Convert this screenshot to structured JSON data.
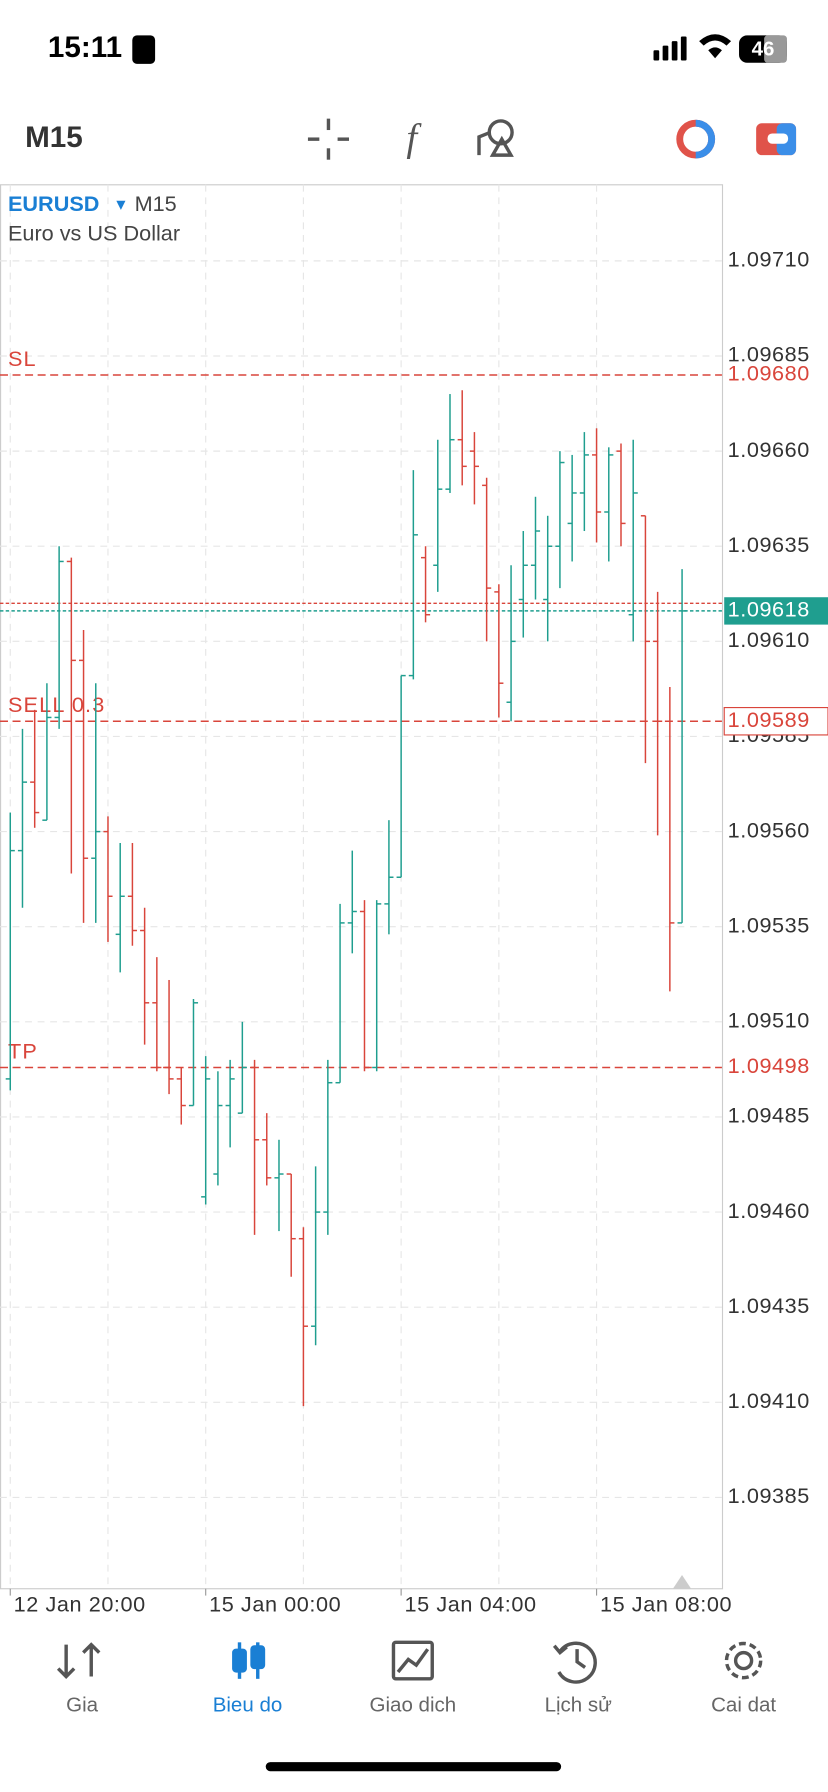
{
  "status_bar": {
    "time": "15:11",
    "battery": "46"
  },
  "toolbar": {
    "timeframe": "M15"
  },
  "chart_data": {
    "type": "ohlc",
    "symbol": "EURUSD",
    "timeframe": "M15",
    "title": "Euro vs US Dollar",
    "categories": [
      "12 Jan 20:00",
      null,
      null,
      null,
      null,
      null,
      null,
      null,
      null,
      null,
      null,
      null,
      null,
      null,
      null,
      null,
      "15 Jan 00:00",
      null,
      null,
      null,
      null,
      null,
      null,
      null,
      null,
      null,
      null,
      null,
      null,
      null,
      null,
      null,
      "15 Jan 04:00",
      null,
      null,
      null,
      null,
      null,
      null,
      null,
      null,
      null,
      null,
      null,
      null,
      null,
      null,
      null,
      "15 Jan 08:00",
      null,
      null,
      null,
      null,
      null,
      null,
      null
    ],
    "open": [
      1.09495,
      1.09555,
      1.09573,
      1.09563,
      1.0959,
      1.09631,
      1.09605,
      1.09553,
      1.0956,
      1.09533,
      1.09543,
      1.09534,
      1.09515,
      1.09498,
      1.09495,
      1.09488,
      1.09464,
      1.0947,
      1.09488,
      1.09486,
      1.09498,
      1.09479,
      1.09469,
      1.0947,
      1.09453,
      1.0943,
      1.0946,
      1.09494,
      1.09536,
      1.09539,
      1.09498,
      1.09541,
      1.09548,
      1.09601,
      1.09632,
      1.0963,
      1.0965,
      1.09663,
      1.0966,
      1.09651,
      1.09623,
      1.09594,
      1.09621,
      1.0963,
      1.09621,
      1.09635,
      1.09641,
      1.09649,
      1.09659,
      1.09644,
      1.0966,
      1.09617,
      1.09643,
      1.0961,
      1.09589,
      1.09536
    ],
    "high": [
      1.09565,
      1.09587,
      1.09592,
      1.09599,
      1.09635,
      1.09632,
      1.09613,
      1.09599,
      1.09564,
      1.09557,
      1.09557,
      1.0954,
      1.09527,
      1.09521,
      1.09498,
      1.09516,
      1.09501,
      1.09497,
      1.095,
      1.0951,
      1.095,
      1.09486,
      1.09479,
      1.0947,
      1.09456,
      1.09472,
      1.095,
      1.09541,
      1.09555,
      1.09542,
      1.09542,
      1.09563,
      1.09601,
      1.09655,
      1.09635,
      1.09663,
      1.09675,
      1.09676,
      1.09665,
      1.09653,
      1.09625,
      1.0963,
      1.09639,
      1.09648,
      1.09643,
      1.0966,
      1.09659,
      1.09665,
      1.09666,
      1.09661,
      1.09662,
      1.09663,
      1.09643,
      1.09623,
      1.09598,
      1.09629
    ],
    "low": [
      1.09492,
      1.0954,
      1.09561,
      1.09563,
      1.09587,
      1.09549,
      1.09536,
      1.09536,
      1.09531,
      1.09523,
      1.0953,
      1.09504,
      1.09497,
      1.09491,
      1.09483,
      1.09488,
      1.09462,
      1.09467,
      1.09477,
      1.09486,
      1.09454,
      1.09467,
      1.09455,
      1.09443,
      1.09409,
      1.09425,
      1.09454,
      1.09494,
      1.09528,
      1.09497,
      1.09497,
      1.09533,
      1.09548,
      1.096,
      1.09615,
      1.09623,
      1.09649,
      1.09651,
      1.09646,
      1.0961,
      1.0959,
      1.09589,
      1.09611,
      1.09621,
      1.0961,
      1.09624,
      1.09631,
      1.09639,
      1.09636,
      1.09631,
      1.09635,
      1.0961,
      1.09578,
      1.09559,
      1.09518,
      1.09536
    ],
    "close": [
      1.09555,
      1.09573,
      1.09565,
      1.0959,
      1.09631,
      1.09605,
      1.09553,
      1.0956,
      1.09543,
      1.09543,
      1.09534,
      1.09515,
      1.09498,
      1.09495,
      1.09488,
      1.09515,
      1.09495,
      1.09488,
      1.09495,
      1.09498,
      1.09479,
      1.09469,
      1.0947,
      1.09453,
      1.0943,
      1.0946,
      1.09494,
      1.09536,
      1.09539,
      1.09498,
      1.09541,
      1.09548,
      1.09601,
      1.09638,
      1.09617,
      1.0965,
      1.09663,
      1.09656,
      1.09656,
      1.09624,
      1.09599,
      1.0961,
      1.0963,
      1.09639,
      1.09635,
      1.09657,
      1.09649,
      1.09659,
      1.09644,
      1.09659,
      1.09641,
      1.09649,
      1.0961,
      1.09589,
      1.09536,
      1.09618
    ],
    "up_color": "#1f9e8f",
    "down_color": "#d9453b",
    "ylim": [
      1.09361,
      1.0973
    ],
    "yticks": [
      {
        "value": 1.0971,
        "label": "1.09710"
      },
      1.09685,
      {
        "value": 1.0966,
        "label": "1.09660"
      },
      1.09635,
      {
        "value": 1.0961,
        "label": "1.09610"
      },
      1.09585,
      {
        "value": 1.0956,
        "label": "1.09560"
      },
      1.09535,
      {
        "value": 1.0951,
        "label": "1.09510"
      },
      1.09485,
      {
        "value": 1.0946,
        "label": "1.09460"
      },
      1.09435,
      {
        "value": 1.0941,
        "label": "1.09410"
      },
      1.09385
    ],
    "grid": true,
    "levels": [
      {
        "name": "SL",
        "value": 1.0968,
        "value_label": "1.09680",
        "color": "#d9453b"
      },
      {
        "name": "SELL 0.3",
        "value": 1.09589,
        "color": "#d9453b",
        "boxed": true
      },
      {
        "name": "TP",
        "value": 1.09498,
        "color": "#d9453b"
      }
    ],
    "bid": {
      "value": 1.09618,
      "color": "#1f9e8f"
    },
    "ask": {
      "value": 1.0962,
      "color": "#d9453b"
    }
  },
  "tabs": [
    "Gia",
    "Bieu do",
    "Giao dich",
    "Lịch sử",
    "Cai dat"
  ]
}
